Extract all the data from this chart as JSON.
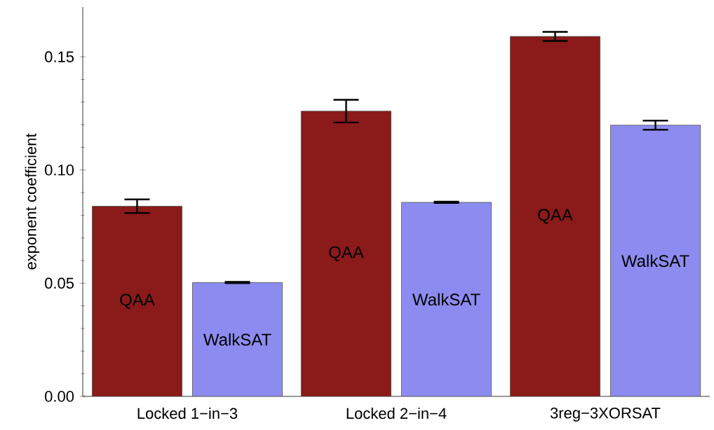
{
  "chart_data": {
    "type": "bar",
    "ylabel": "exponent coefficient",
    "categories": [
      "Locked 1−in−3",
      "Locked 2−in−4",
      "3reg−3XORSAT"
    ],
    "series": [
      {
        "name": "QAA",
        "color": "#8b1a1a",
        "values": [
          0.084,
          0.126,
          0.159
        ],
        "errors": [
          [
            0.081,
            0.087
          ],
          [
            0.121,
            0.131
          ],
          [
            0.157,
            0.161
          ]
        ]
      },
      {
        "name": "WalkSAT",
        "color": "#8c8cf0",
        "values": [
          0.0503,
          0.0857,
          0.1198
        ],
        "errors": [
          [
            0.05,
            0.0506
          ],
          [
            0.0854,
            0.086
          ],
          [
            0.1178,
            0.1218
          ]
        ]
      }
    ],
    "ylim": [
      0,
      0.172
    ],
    "yticks": [
      {
        "value": 0,
        "label": "0.00"
      },
      {
        "value": 0.05,
        "label": "0.05"
      },
      {
        "value": 0.1,
        "label": "0.10"
      },
      {
        "value": 0.15,
        "label": "0.15"
      }
    ],
    "grid": false
  }
}
